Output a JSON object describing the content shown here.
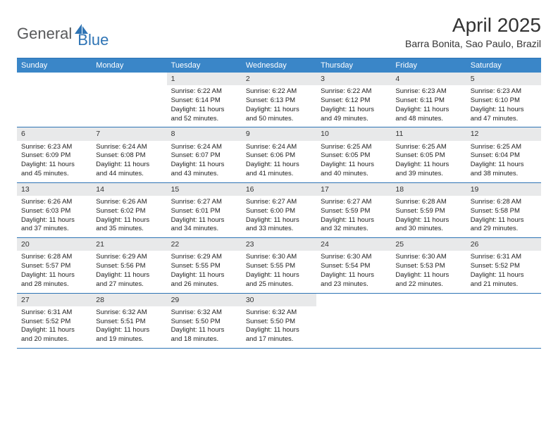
{
  "brand": {
    "part1": "General",
    "part2": "Blue"
  },
  "title": "April 2025",
  "location": "Barra Bonita, Sao Paulo, Brazil",
  "colors": {
    "header_bar": "#3a86c8",
    "rule": "#2e74b5",
    "daynum_bg": "#e8e9ea",
    "logo_gray": "#58595b",
    "logo_blue": "#2e74b5"
  },
  "weekdays": [
    "Sunday",
    "Monday",
    "Tuesday",
    "Wednesday",
    "Thursday",
    "Friday",
    "Saturday"
  ],
  "weeks": [
    [
      {
        "n": "",
        "sr": "",
        "ss": "",
        "dl": "",
        "empty": true
      },
      {
        "n": "",
        "sr": "",
        "ss": "",
        "dl": "",
        "empty": true
      },
      {
        "n": "1",
        "sr": "Sunrise: 6:22 AM",
        "ss": "Sunset: 6:14 PM",
        "dl": "Daylight: 11 hours and 52 minutes."
      },
      {
        "n": "2",
        "sr": "Sunrise: 6:22 AM",
        "ss": "Sunset: 6:13 PM",
        "dl": "Daylight: 11 hours and 50 minutes."
      },
      {
        "n": "3",
        "sr": "Sunrise: 6:22 AM",
        "ss": "Sunset: 6:12 PM",
        "dl": "Daylight: 11 hours and 49 minutes."
      },
      {
        "n": "4",
        "sr": "Sunrise: 6:23 AM",
        "ss": "Sunset: 6:11 PM",
        "dl": "Daylight: 11 hours and 48 minutes."
      },
      {
        "n": "5",
        "sr": "Sunrise: 6:23 AM",
        "ss": "Sunset: 6:10 PM",
        "dl": "Daylight: 11 hours and 47 minutes."
      }
    ],
    [
      {
        "n": "6",
        "sr": "Sunrise: 6:23 AM",
        "ss": "Sunset: 6:09 PM",
        "dl": "Daylight: 11 hours and 45 minutes."
      },
      {
        "n": "7",
        "sr": "Sunrise: 6:24 AM",
        "ss": "Sunset: 6:08 PM",
        "dl": "Daylight: 11 hours and 44 minutes."
      },
      {
        "n": "8",
        "sr": "Sunrise: 6:24 AM",
        "ss": "Sunset: 6:07 PM",
        "dl": "Daylight: 11 hours and 43 minutes."
      },
      {
        "n": "9",
        "sr": "Sunrise: 6:24 AM",
        "ss": "Sunset: 6:06 PM",
        "dl": "Daylight: 11 hours and 41 minutes."
      },
      {
        "n": "10",
        "sr": "Sunrise: 6:25 AM",
        "ss": "Sunset: 6:05 PM",
        "dl": "Daylight: 11 hours and 40 minutes."
      },
      {
        "n": "11",
        "sr": "Sunrise: 6:25 AM",
        "ss": "Sunset: 6:05 PM",
        "dl": "Daylight: 11 hours and 39 minutes."
      },
      {
        "n": "12",
        "sr": "Sunrise: 6:25 AM",
        "ss": "Sunset: 6:04 PM",
        "dl": "Daylight: 11 hours and 38 minutes."
      }
    ],
    [
      {
        "n": "13",
        "sr": "Sunrise: 6:26 AM",
        "ss": "Sunset: 6:03 PM",
        "dl": "Daylight: 11 hours and 37 minutes."
      },
      {
        "n": "14",
        "sr": "Sunrise: 6:26 AM",
        "ss": "Sunset: 6:02 PM",
        "dl": "Daylight: 11 hours and 35 minutes."
      },
      {
        "n": "15",
        "sr": "Sunrise: 6:27 AM",
        "ss": "Sunset: 6:01 PM",
        "dl": "Daylight: 11 hours and 34 minutes."
      },
      {
        "n": "16",
        "sr": "Sunrise: 6:27 AM",
        "ss": "Sunset: 6:00 PM",
        "dl": "Daylight: 11 hours and 33 minutes."
      },
      {
        "n": "17",
        "sr": "Sunrise: 6:27 AM",
        "ss": "Sunset: 5:59 PM",
        "dl": "Daylight: 11 hours and 32 minutes."
      },
      {
        "n": "18",
        "sr": "Sunrise: 6:28 AM",
        "ss": "Sunset: 5:59 PM",
        "dl": "Daylight: 11 hours and 30 minutes."
      },
      {
        "n": "19",
        "sr": "Sunrise: 6:28 AM",
        "ss": "Sunset: 5:58 PM",
        "dl": "Daylight: 11 hours and 29 minutes."
      }
    ],
    [
      {
        "n": "20",
        "sr": "Sunrise: 6:28 AM",
        "ss": "Sunset: 5:57 PM",
        "dl": "Daylight: 11 hours and 28 minutes."
      },
      {
        "n": "21",
        "sr": "Sunrise: 6:29 AM",
        "ss": "Sunset: 5:56 PM",
        "dl": "Daylight: 11 hours and 27 minutes."
      },
      {
        "n": "22",
        "sr": "Sunrise: 6:29 AM",
        "ss": "Sunset: 5:55 PM",
        "dl": "Daylight: 11 hours and 26 minutes."
      },
      {
        "n": "23",
        "sr": "Sunrise: 6:30 AM",
        "ss": "Sunset: 5:55 PM",
        "dl": "Daylight: 11 hours and 25 minutes."
      },
      {
        "n": "24",
        "sr": "Sunrise: 6:30 AM",
        "ss": "Sunset: 5:54 PM",
        "dl": "Daylight: 11 hours and 23 minutes."
      },
      {
        "n": "25",
        "sr": "Sunrise: 6:30 AM",
        "ss": "Sunset: 5:53 PM",
        "dl": "Daylight: 11 hours and 22 minutes."
      },
      {
        "n": "26",
        "sr": "Sunrise: 6:31 AM",
        "ss": "Sunset: 5:52 PM",
        "dl": "Daylight: 11 hours and 21 minutes."
      }
    ],
    [
      {
        "n": "27",
        "sr": "Sunrise: 6:31 AM",
        "ss": "Sunset: 5:52 PM",
        "dl": "Daylight: 11 hours and 20 minutes."
      },
      {
        "n": "28",
        "sr": "Sunrise: 6:32 AM",
        "ss": "Sunset: 5:51 PM",
        "dl": "Daylight: 11 hours and 19 minutes."
      },
      {
        "n": "29",
        "sr": "Sunrise: 6:32 AM",
        "ss": "Sunset: 5:50 PM",
        "dl": "Daylight: 11 hours and 18 minutes."
      },
      {
        "n": "30",
        "sr": "Sunrise: 6:32 AM",
        "ss": "Sunset: 5:50 PM",
        "dl": "Daylight: 11 hours and 17 minutes."
      },
      {
        "n": "",
        "sr": "",
        "ss": "",
        "dl": "",
        "empty": true
      },
      {
        "n": "",
        "sr": "",
        "ss": "",
        "dl": "",
        "empty": true
      },
      {
        "n": "",
        "sr": "",
        "ss": "",
        "dl": "",
        "empty": true
      }
    ]
  ]
}
